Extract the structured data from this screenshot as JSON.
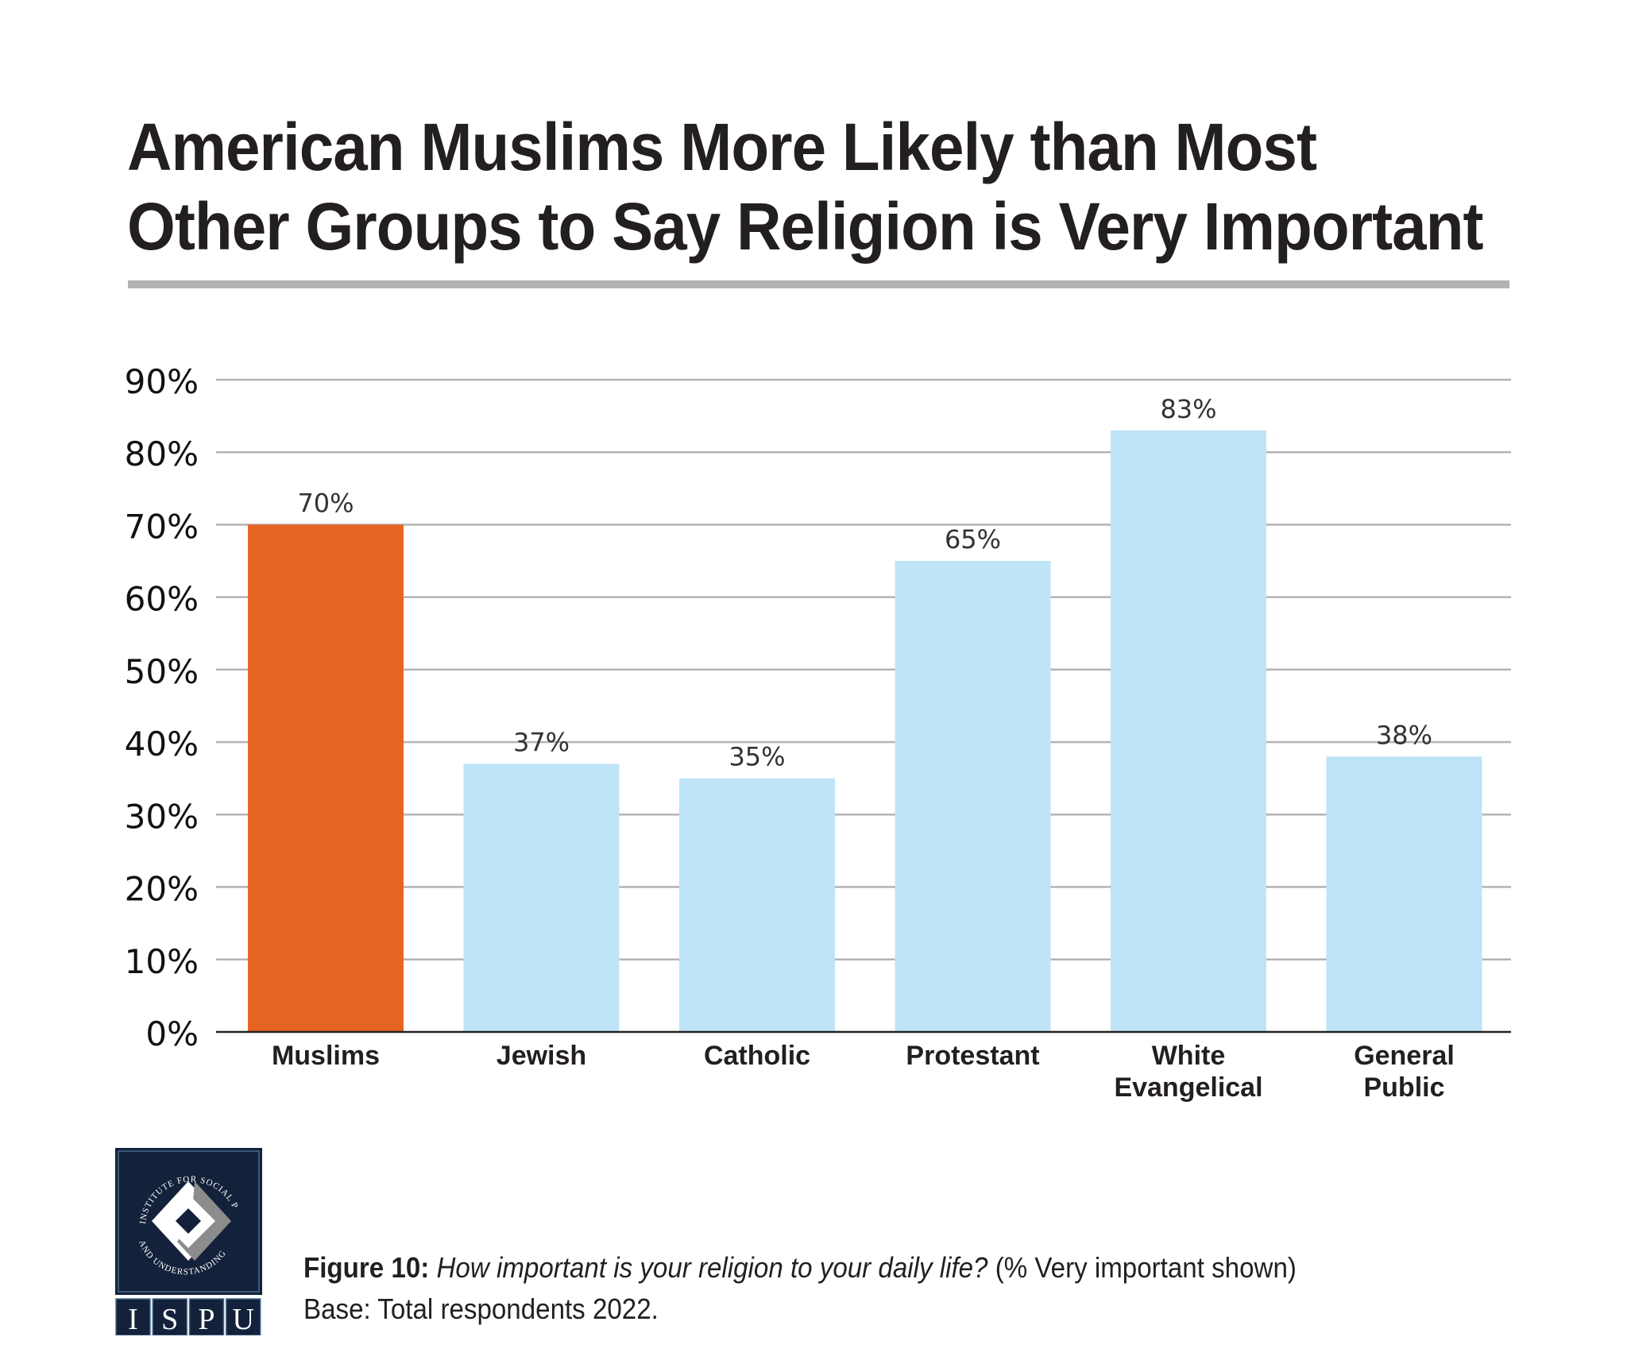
{
  "title": {
    "line1": "American Muslims More Likely than Most",
    "line2": "Other Groups to Say Religion is Very Important"
  },
  "chart_data": {
    "type": "bar",
    "title": "American Muslims More Likely than Most Other Groups to Say Religion is Very Important",
    "xlabel": "",
    "ylabel": "",
    "ylim": [
      0,
      90
    ],
    "yticks": [
      0,
      10,
      20,
      30,
      40,
      50,
      60,
      70,
      80,
      90
    ],
    "ytick_labels": [
      "0%",
      "10%",
      "20%",
      "30%",
      "40%",
      "50%",
      "60%",
      "70%",
      "80%",
      "90%"
    ],
    "grid": true,
    "categories": [
      [
        "Muslims"
      ],
      [
        "Jewish"
      ],
      [
        "Catholic"
      ],
      [
        "Protestant"
      ],
      [
        "White",
        "Evangelical"
      ],
      [
        "General",
        "Public"
      ]
    ],
    "values": [
      70,
      37,
      35,
      65,
      83,
      38
    ],
    "data_labels": [
      "70%",
      "37%",
      "35%",
      "65%",
      "83%",
      "38%"
    ],
    "colors": [
      "#e66522",
      "#bfe4f7",
      "#bfe4f7",
      "#bfe4f7",
      "#bfe4f7",
      "#bfe4f7"
    ]
  },
  "caption": {
    "figure_label": "Figure 10:",
    "question": "How important is your religion to your daily life?",
    "note": "(% Very important shown)",
    "base": "Base: Total respondents 2022."
  },
  "logo": {
    "ring_text_top": "INSTITUTE FOR SOCIAL POLICY",
    "ring_text_bottom": "AND UNDERSTANDING",
    "letters": [
      "I",
      "S",
      "P",
      "U"
    ],
    "colors": {
      "navy": "#14213a",
      "gray": "#8c8c8c",
      "white": "#ffffff"
    }
  }
}
